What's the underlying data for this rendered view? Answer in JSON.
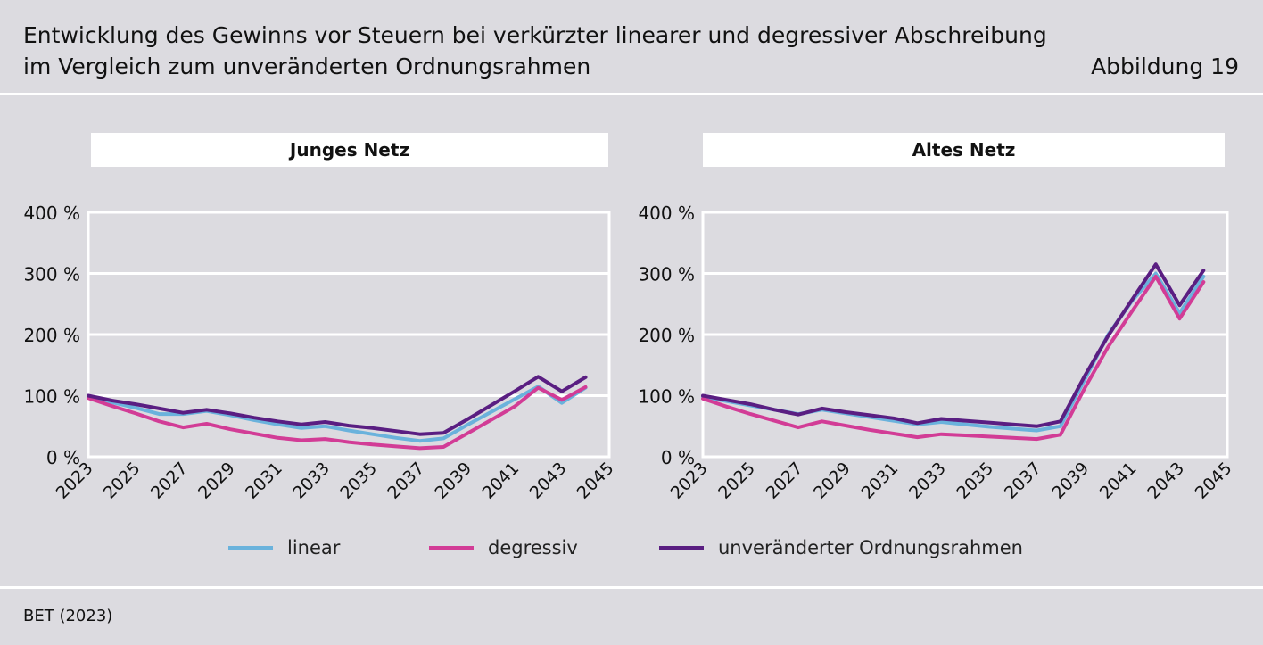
{
  "header": {
    "title_line1": "Entwicklung des Gewinns vor Steuern bei verkürzter linearer und degressiver Abschreibung",
    "title_line2": "im Vergleich zum unveränderten Ordnungsrahmen",
    "figure_label": "Abbildung 19"
  },
  "footer": {
    "source": "BET (2023)"
  },
  "colors": {
    "linear": "#6ab2dc",
    "degressiv": "#d23c96",
    "unveraendert": "#5a1e82",
    "panel_bg": "#ffffff",
    "page_bg": "#dcdbe0"
  },
  "legend": [
    {
      "key": "linear",
      "label": "linear"
    },
    {
      "key": "degressiv",
      "label": "degressiv"
    },
    {
      "key": "unveraendert",
      "label": "unveränderter Ordnungsrahmen"
    }
  ],
  "chart_data": [
    {
      "type": "line",
      "title": "Junges Netz",
      "x": [
        2023,
        2024,
        2025,
        2026,
        2027,
        2028,
        2029,
        2030,
        2031,
        2032,
        2033,
        2034,
        2035,
        2036,
        2037,
        2038,
        2039,
        2040,
        2041,
        2042,
        2043,
        2044
      ],
      "x_ticks": [
        "2023",
        "2025",
        "2027",
        "2029",
        "2031",
        "2033",
        "2035",
        "2037",
        "2039",
        "2041",
        "2043",
        "2045"
      ],
      "xlim": [
        2023,
        2045
      ],
      "ylim": [
        0,
        400
      ],
      "y_ticks": [
        "0 %",
        "100 %",
        "200 %",
        "300 %",
        "400 %"
      ],
      "y_tick_values": [
        0,
        100,
        200,
        300,
        400
      ],
      "series": [
        {
          "key": "linear",
          "name": "linear",
          "values": [
            98,
            89,
            80,
            70,
            70,
            75,
            68,
            60,
            53,
            47,
            50,
            43,
            37,
            31,
            26,
            30,
            52,
            73,
            94,
            115,
            88,
            113
          ]
        },
        {
          "key": "degressiv",
          "name": "degressiv",
          "values": [
            96,
            83,
            71,
            58,
            48,
            54,
            45,
            38,
            31,
            27,
            29,
            24,
            20,
            17,
            14,
            16,
            38,
            60,
            82,
            113,
            93,
            114
          ]
        },
        {
          "key": "unveraendert",
          "name": "unveränderter Ordnungsrahmen",
          "values": [
            100,
            92,
            86,
            79,
            72,
            77,
            71,
            64,
            58,
            53,
            57,
            51,
            47,
            42,
            37,
            39,
            61,
            84,
            107,
            131,
            107,
            130
          ]
        }
      ]
    },
    {
      "type": "line",
      "title": "Altes Netz",
      "x": [
        2023,
        2024,
        2025,
        2026,
        2027,
        2028,
        2029,
        2030,
        2031,
        2032,
        2033,
        2034,
        2035,
        2036,
        2037,
        2038,
        2039,
        2040,
        2041,
        2042,
        2043,
        2044
      ],
      "x_ticks": [
        "2023",
        "2025",
        "2027",
        "2029",
        "2031",
        "2033",
        "2035",
        "2037",
        "2039",
        "2041",
        "2043",
        "2045"
      ],
      "xlim": [
        2023,
        2045
      ],
      "ylim": [
        0,
        400
      ],
      "y_ticks": [
        "0 %",
        "100 %",
        "200 %",
        "300 %",
        "400 %"
      ],
      "y_tick_values": [
        0,
        100,
        200,
        300,
        400
      ],
      "series": [
        {
          "key": "linear",
          "name": "linear",
          "values": [
            98,
            91,
            84,
            77,
            70,
            77,
            71,
            65,
            59,
            53,
            57,
            53,
            49,
            46,
            43,
            50,
            125,
            200,
            255,
            300,
            235,
            295
          ]
        },
        {
          "key": "degressiv",
          "name": "degressiv",
          "values": [
            95,
            82,
            70,
            59,
            48,
            58,
            51,
            44,
            38,
            32,
            37,
            35,
            33,
            31,
            29,
            36,
            111,
            180,
            238,
            295,
            226,
            286
          ]
        },
        {
          "key": "unveraendert",
          "name": "unveränderter Ordnungsrahmen",
          "values": [
            100,
            93,
            86,
            77,
            69,
            79,
            73,
            68,
            63,
            55,
            62,
            59,
            56,
            53,
            50,
            58,
            131,
            198,
            257,
            315,
            248,
            305
          ]
        }
      ]
    }
  ]
}
